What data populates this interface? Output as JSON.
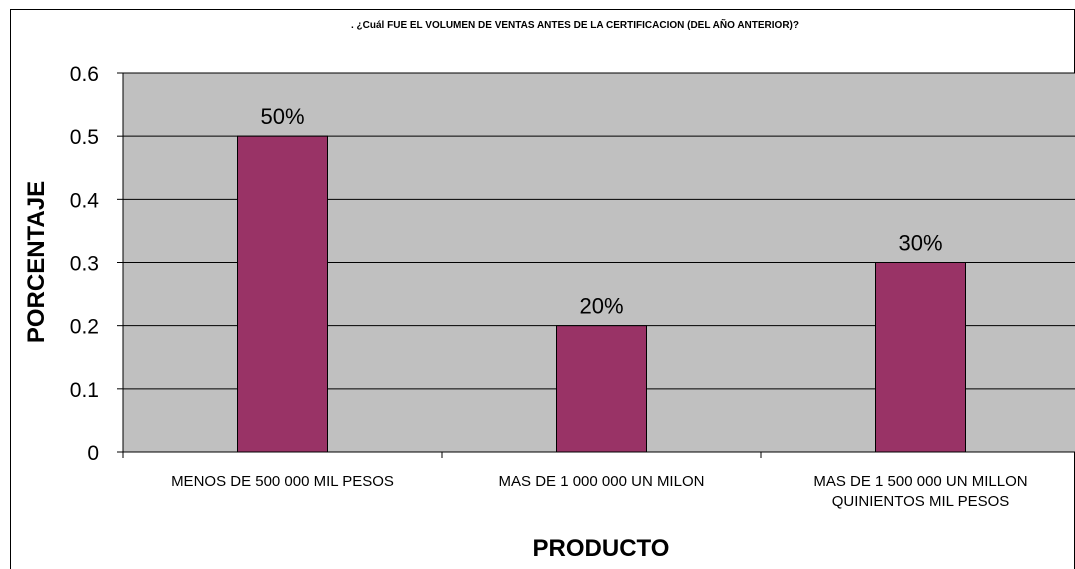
{
  "chart_data": {
    "type": "bar",
    "title": ". ¿Cuál FUE EL VOLUMEN DE VENTAS ANTES  DE LA CERTIFICACION (DEL AÑO ANTERIOR)?",
    "xlabel": "PRODUCTO",
    "ylabel": "PORCENTAJE",
    "categories": [
      [
        "MENOS DE 500 000 MIL PESOS"
      ],
      [
        "MAS DE 1 000 000 UN MILON"
      ],
      [
        "MAS DE 1 500 000 UN MILLON",
        "QUINIENTOS MIL PESOS"
      ]
    ],
    "values": [
      0.5,
      0.2,
      0.3
    ],
    "data_labels": [
      "50%",
      "20%",
      "30%"
    ],
    "ylim": [
      0,
      0.6
    ],
    "yticks": [
      "0",
      "0.1",
      "0.2",
      "0.3",
      "0.4",
      "0.5",
      "0.6"
    ],
    "grid": true,
    "legend": "none",
    "colors": {
      "bar": "#993366",
      "plot_area": "#c0c0c0",
      "gridline": "#000000"
    }
  }
}
